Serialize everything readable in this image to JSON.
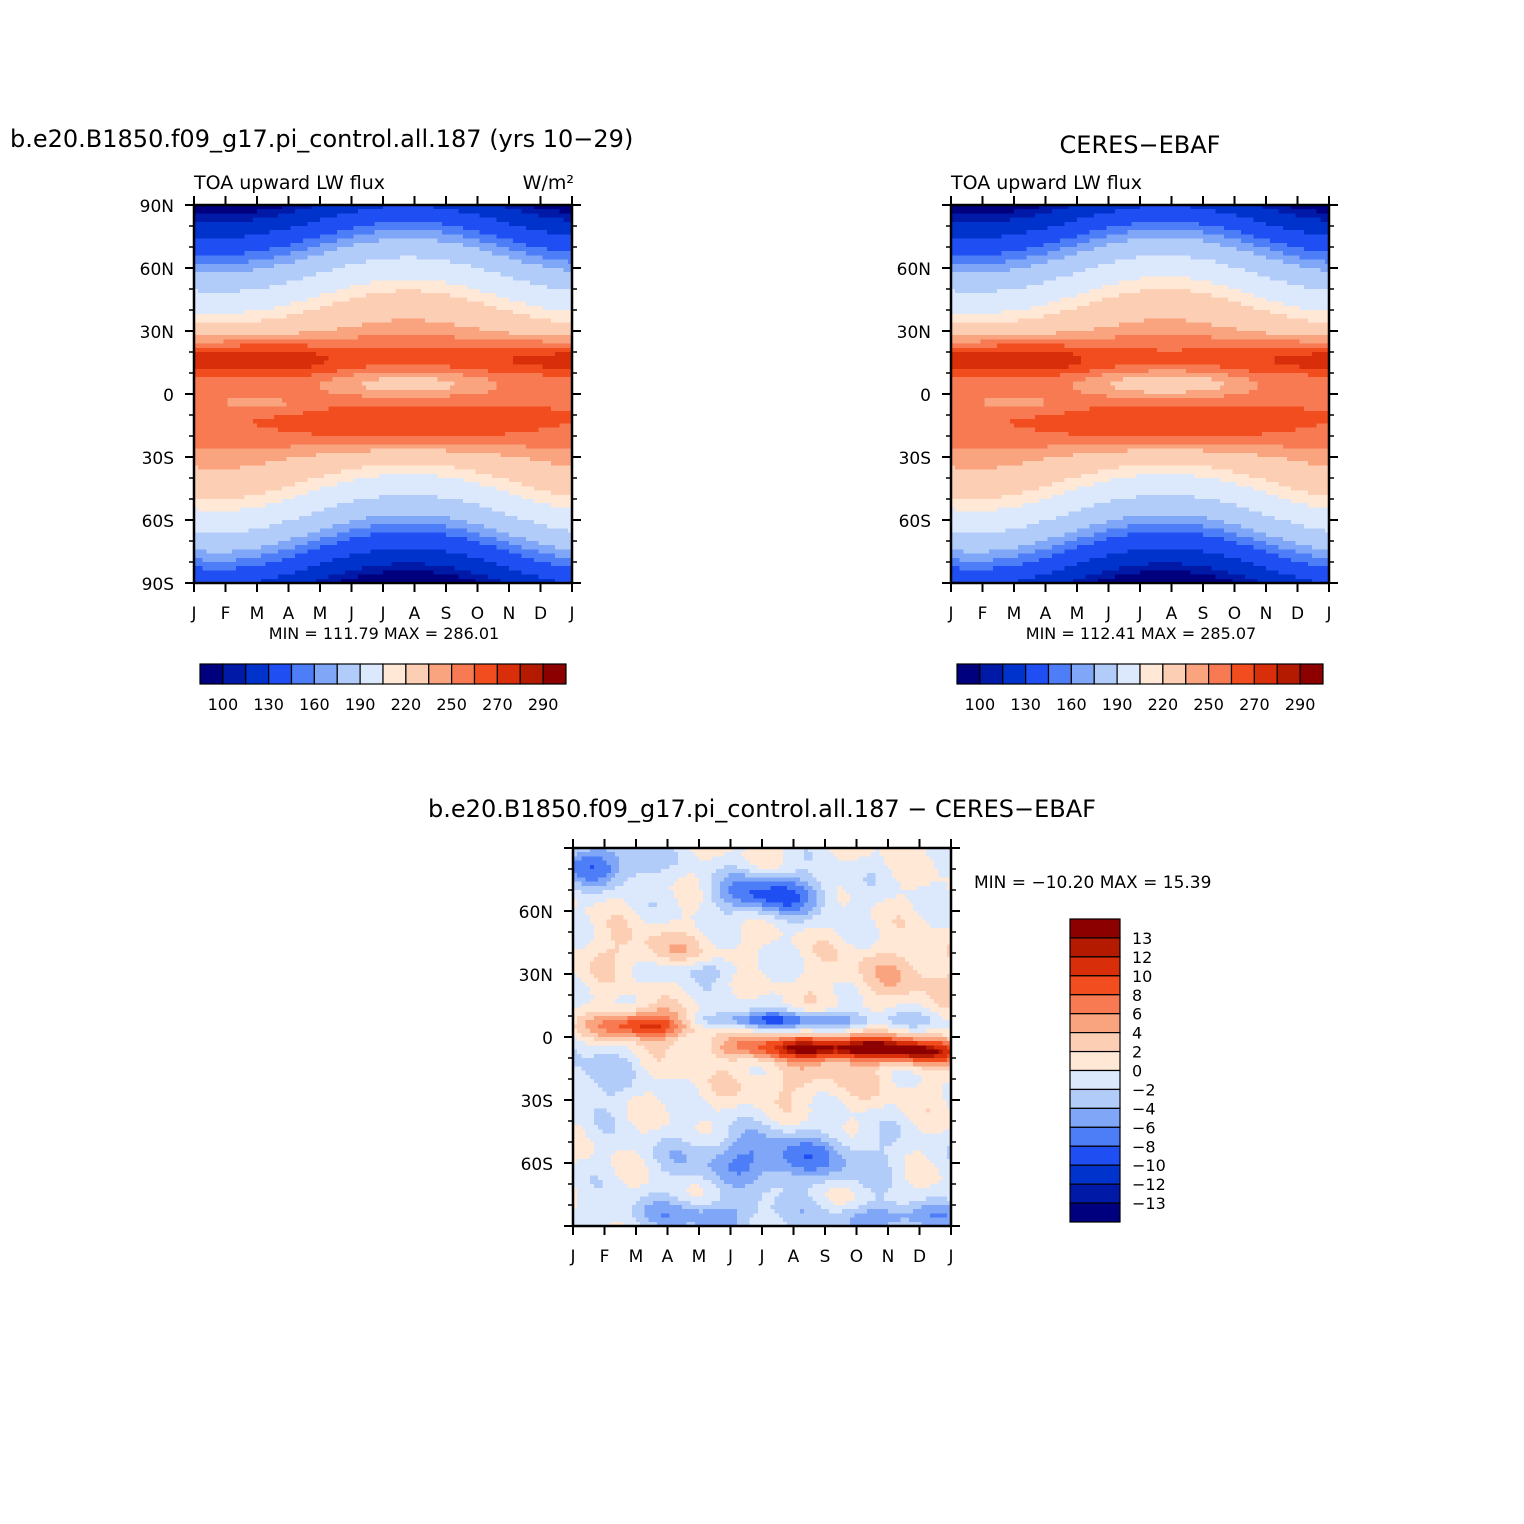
{
  "colorbar_abs": {
    "colors": [
      "#00007f",
      "#0019a6",
      "#0033cc",
      "#1f4ff2",
      "#4d7ef7",
      "#7fa6f7",
      "#b2ccfa",
      "#dce8fc",
      "#ffe8d6",
      "#fccfb5",
      "#faa37f",
      "#f77a52",
      "#f24d1f",
      "#d92e0a",
      "#b31a00",
      "#8c0000"
    ],
    "labels": [
      "100",
      "130",
      "160",
      "190",
      "220",
      "250",
      "270",
      "290"
    ]
  },
  "colorbar_diff": {
    "colors": [
      "#8c0000",
      "#b31a00",
      "#d92e0a",
      "#f24d1f",
      "#f77a52",
      "#faa37f",
      "#fccfb5",
      "#ffe8d6",
      "#dce8fc",
      "#b2ccfa",
      "#7fa6f7",
      "#4d7ef7",
      "#1f4ff2",
      "#0033cc",
      "#0019a6",
      "#00007f"
    ],
    "labels": [
      "13",
      "12",
      "10",
      "8",
      "6",
      "4",
      "2",
      "0",
      "−2",
      "−4",
      "−6",
      "−8",
      "−10",
      "−12",
      "−13"
    ]
  },
  "chart_data": [
    {
      "type": "heatmap",
      "title": "b.e20.B1850.f09_g17.pi_control.all.187 (yrs 10−29)",
      "subtitle_left": "TOA upward LW flux",
      "subtitle_right": "W/m²",
      "x_ticks": [
        "J",
        "F",
        "M",
        "A",
        "M",
        "J",
        "J",
        "A",
        "S",
        "O",
        "N",
        "D",
        "J"
      ],
      "y_ticks": [
        "90N",
        "60N",
        "30N",
        "0",
        "30S",
        "60S",
        "90S"
      ],
      "min_max": "MIN =  111.79  MAX =  286.01",
      "ylim": [
        -90,
        90
      ],
      "levels": [
        100,
        110,
        130,
        150,
        160,
        170,
        190,
        210,
        220,
        240,
        250,
        260,
        270,
        280,
        290
      ],
      "pattern": "model"
    },
    {
      "type": "heatmap",
      "title": "CERES−EBAF",
      "subtitle_left": "TOA upward LW flux",
      "subtitle_right": "",
      "x_ticks": [
        "J",
        "F",
        "M",
        "A",
        "M",
        "J",
        "J",
        "A",
        "S",
        "O",
        "N",
        "D",
        "J"
      ],
      "y_ticks": [
        "",
        "60N",
        "30N",
        "0",
        "30S",
        "60S",
        ""
      ],
      "min_max": "MIN =  112.41  MAX =  285.07",
      "ylim": [
        -90,
        90
      ],
      "levels": [
        100,
        110,
        130,
        150,
        160,
        170,
        190,
        210,
        220,
        240,
        250,
        260,
        270,
        280,
        290
      ],
      "pattern": "obs"
    },
    {
      "type": "heatmap",
      "title": "b.e20.B1850.f09_g17.pi_control.all.187  −  CERES−EBAF",
      "x_ticks": [
        "J",
        "F",
        "M",
        "A",
        "M",
        "J",
        "J",
        "A",
        "S",
        "O",
        "N",
        "D",
        "J"
      ],
      "y_ticks": [
        "",
        "60N",
        "30N",
        "0",
        "30S",
        "60S",
        ""
      ],
      "min_max": "MIN =  −10.20  MAX =    15.39",
      "ylim": [
        -90,
        90
      ],
      "levels": [
        -13,
        -12,
        -10,
        -8,
        -6,
        -4,
        -2,
        0,
        2,
        4,
        6,
        8,
        10,
        12,
        13
      ],
      "pattern": "diff"
    }
  ]
}
